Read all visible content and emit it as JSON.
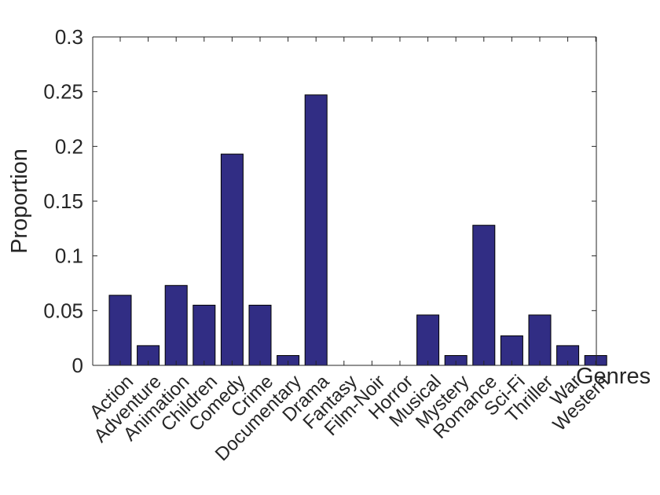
{
  "chart_data": {
    "type": "bar",
    "title": "",
    "xlabel": "Genres",
    "ylabel": "Proportion",
    "ylim": [
      0,
      0.3
    ],
    "yticks": [
      "0",
      "0.05",
      "0.1",
      "0.15",
      "0.2",
      "0.25",
      "0.3"
    ],
    "yticks_values": [
      0,
      0.05,
      0.1,
      0.15,
      0.2,
      0.25,
      0.3
    ],
    "grid": false,
    "bar_color": "#312d84",
    "categories": [
      "Action",
      "Adventure",
      "Animation",
      "Children",
      "Comedy",
      "Crime",
      "Documentary",
      "Drama",
      "Fantasy",
      "Film-Noir",
      "Horror",
      "Musical",
      "Mystery",
      "Romance",
      "Sci-Fi",
      "Thriller",
      "War",
      "Western"
    ],
    "values": [
      0.064,
      0.018,
      0.073,
      0.055,
      0.193,
      0.055,
      0.009,
      0.247,
      0,
      0,
      0,
      0.046,
      0.009,
      0.128,
      0.027,
      0.046,
      0.018,
      0.009
    ]
  }
}
